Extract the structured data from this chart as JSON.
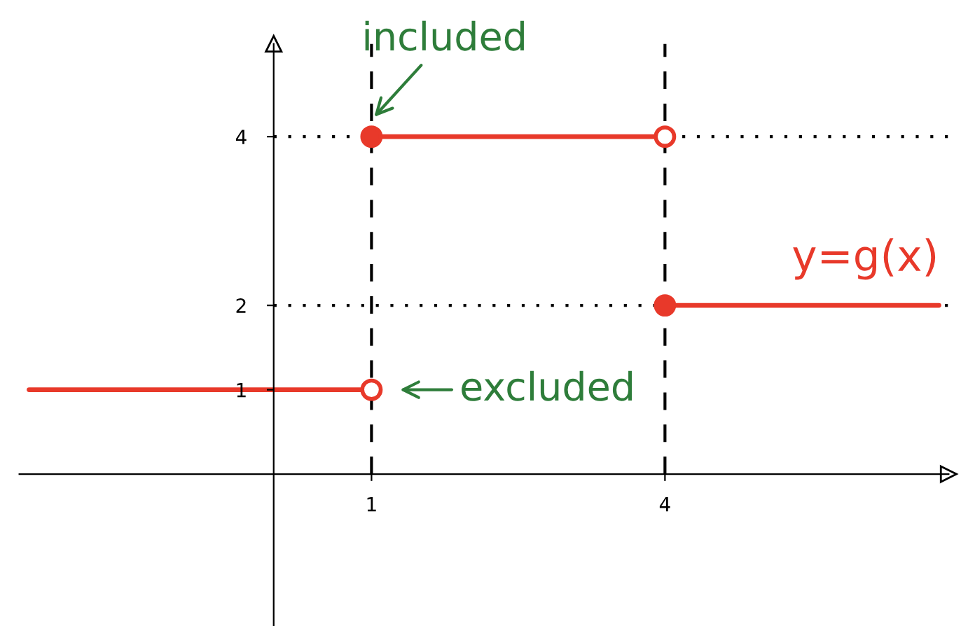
{
  "chart_data": {
    "type": "line",
    "series": [
      {
        "color": "#e8392a",
        "x": [
          -2.5,
          1
        ],
        "values": [
          1,
          1
        ]
      },
      {
        "color": "#e8392a",
        "x": [
          1,
          4
        ],
        "values": [
          4,
          4
        ]
      },
      {
        "name": "y=g(x)",
        "color": "#e8392a",
        "x": [
          4,
          6.8
        ],
        "values": [
          2,
          2
        ]
      },
      {
        "type": "scatter",
        "color": "#e8392a",
        "x": [
          1,
          4
        ],
        "values": [
          4,
          2
        ],
        "marker": "circle"
      },
      {
        "type": "scatter",
        "color": "#e8392a",
        "colors": [
          "#ffffff",
          "#ffffff"
        ],
        "x": [
          1,
          4
        ],
        "values": [
          1,
          4
        ],
        "marker": "circle"
      }
    ],
    "xlim": [
      -2.6,
      6.9
    ],
    "ylim": [
      -1.8,
      5.1
    ],
    "xticks": [
      1,
      4
    ],
    "yticks": [
      1,
      2,
      4
    ],
    "ref_lines": [
      {
        "axis": "x",
        "value": 1,
        "color": "#000000",
        "line_style": "dashed"
      },
      {
        "axis": "x",
        "value": 4,
        "color": "#000000",
        "line_style": "dashed"
      },
      {
        "axis": "y",
        "value": 4,
        "color": "#000000",
        "line_style": "dotted"
      },
      {
        "axis": "y",
        "value": 2,
        "color": "#000000",
        "line_style": "dotted"
      }
    ],
    "annotations": [
      {
        "text": "included",
        "x": 1,
        "y": 4
      },
      {
        "text": "excluded",
        "x": 1,
        "y": 1
      }
    ]
  }
}
